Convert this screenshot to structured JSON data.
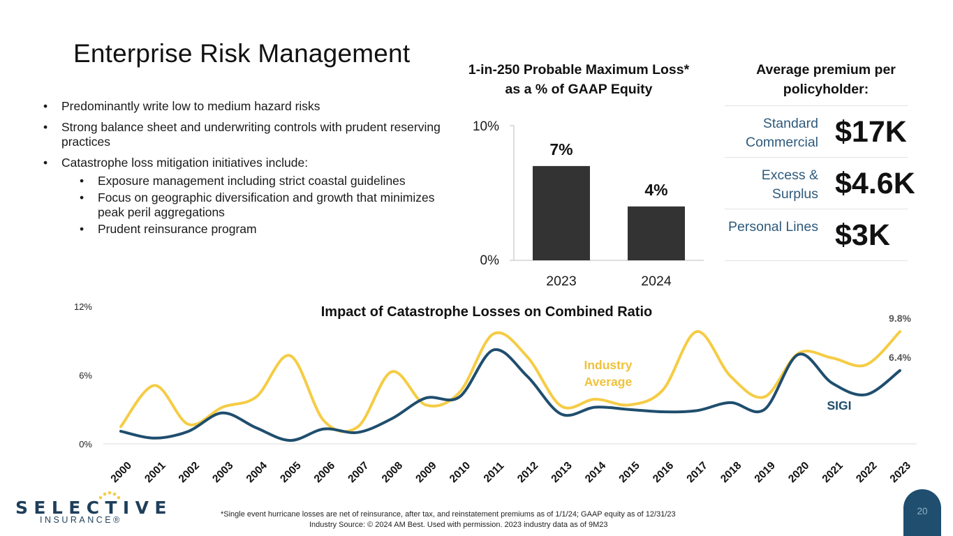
{
  "title": "Enterprise Risk Management",
  "bullets": [
    "Predominantly write low to medium hazard risks",
    "Strong balance sheet and underwriting controls with prudent reserving practices",
    "Catastrophe loss mitigation initiatives include:"
  ],
  "sub_bullets": [
    "Exposure management including strict coastal guidelines",
    "Focus on geographic diversification and growth that minimizes peak peril aggregations",
    "Prudent reinsurance program"
  ],
  "premium": {
    "title": "Average premium per policyholder:",
    "rows": [
      {
        "label": "Standard Commercial",
        "value": "$17K"
      },
      {
        "label": "Excess & Surplus",
        "value": "$4.6K"
      },
      {
        "label": "Personal Lines",
        "value": "$3K"
      }
    ]
  },
  "chart_data": [
    {
      "type": "bar",
      "title": "1-in-250 Probable Maximum Loss* as a % of GAAP Equity",
      "categories": [
        "2023",
        "2024"
      ],
      "values": [
        7,
        4
      ],
      "value_labels": [
        "7%",
        "4%"
      ],
      "yticks": [
        "0%",
        "10%"
      ],
      "ylim": [
        0,
        10
      ],
      "bar_color": "#333333"
    },
    {
      "type": "line",
      "title": "Impact of Catastrophe Losses on Combined Ratio",
      "x": [
        "2000",
        "2001",
        "2002",
        "2003",
        "2004",
        "2005",
        "2006",
        "2007",
        "2008",
        "2009",
        "2010",
        "2011",
        "2012",
        "2013",
        "2014",
        "2015",
        "2016",
        "2017",
        "2018",
        "2019",
        "2020",
        "2021",
        "2022",
        "2023"
      ],
      "ylim": [
        0,
        12
      ],
      "yticks": [
        "0%",
        "6%",
        "12%"
      ],
      "grid": false,
      "series": [
        {
          "name": "SIGI",
          "color": "#1f4e6e",
          "values": [
            1.1,
            0.5,
            1.1,
            2.7,
            1.4,
            0.3,
            1.3,
            1.0,
            2.2,
            4.0,
            4.1,
            8.2,
            5.9,
            2.6,
            3.2,
            3.0,
            2.8,
            2.9,
            3.6,
            3.0,
            7.8,
            5.3,
            4.3,
            6.4
          ],
          "end_label": "6.4%"
        },
        {
          "name": "Industry Average",
          "color": "#f5cc45",
          "values": [
            1.5,
            5.1,
            1.7,
            3.2,
            4.1,
            7.7,
            2.0,
            1.5,
            6.3,
            3.4,
            4.5,
            9.6,
            7.6,
            3.3,
            3.9,
            3.4,
            4.7,
            9.8,
            5.9,
            4.1,
            7.9,
            7.5,
            6.9,
            9.8
          ],
          "end_label": "9.8%"
        }
      ]
    }
  ],
  "logo": {
    "word": "SELECTIVE",
    "sub": "INSURANCE®",
    "dot_color": "#f5cc45"
  },
  "footnote1": "*Single event hurricane losses are net of reinsurance, after tax, and reinstatement premiums as of 1/1/24; GAAP equity as of 12/31/23",
  "footnote2": "Industry Source:  © 2024 AM Best. Used with permission. 2023 industry data as of 9M23",
  "page_number": "20"
}
